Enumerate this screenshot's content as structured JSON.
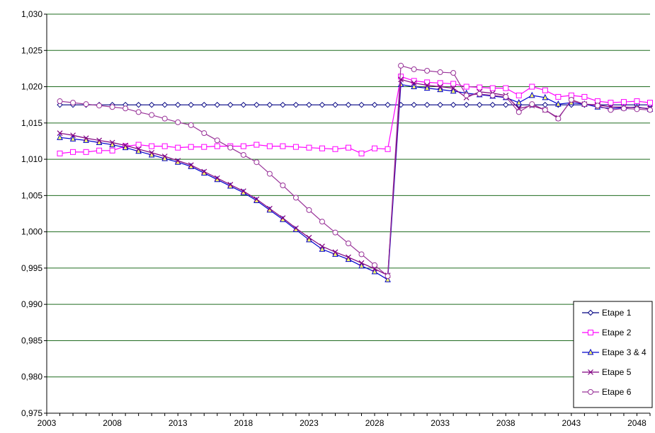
{
  "chart_data": {
    "type": "line",
    "title": "",
    "xlabel": "",
    "ylabel": "",
    "xlim": [
      2003,
      2049
    ],
    "ylim": [
      0.975,
      1.03
    ],
    "x_ticks": [
      2003,
      2008,
      2013,
      2018,
      2023,
      2028,
      2033,
      2038,
      2043,
      2048
    ],
    "y_ticks": [
      0.975,
      0.98,
      0.985,
      0.99,
      0.995,
      1.0,
      1.005,
      1.01,
      1.015,
      1.02,
      1.025,
      1.03
    ],
    "x_tick_labels": [
      "2003",
      "2008",
      "2013",
      "2018",
      "2023",
      "2028",
      "2033",
      "2038",
      "2043",
      "2048"
    ],
    "y_tick_labels": [
      "0,975",
      "0,980",
      "0,985",
      "0,990",
      "0,995",
      "1,000",
      "1,005",
      "1,010",
      "1,015",
      "1,020",
      "1,025",
      "1,030"
    ],
    "grid": "horizontal",
    "legend_position": "bottom-right",
    "x": [
      2004,
      2005,
      2006,
      2007,
      2008,
      2009,
      2010,
      2011,
      2012,
      2013,
      2014,
      2015,
      2016,
      2017,
      2018,
      2019,
      2020,
      2021,
      2022,
      2023,
      2024,
      2025,
      2026,
      2027,
      2028,
      2029,
      2030,
      2031,
      2032,
      2033,
      2034,
      2035,
      2036,
      2037,
      2038,
      2039,
      2040,
      2041,
      2042,
      2043,
      2044,
      2045,
      2046,
      2047,
      2048,
      2049
    ],
    "series": [
      {
        "name": "Etape 1",
        "color": "#000080",
        "marker": "diamond",
        "values": [
          1.0175,
          1.0175,
          1.0175,
          1.0175,
          1.0175,
          1.0175,
          1.0175,
          1.0175,
          1.0175,
          1.0175,
          1.0175,
          1.0175,
          1.0175,
          1.0175,
          1.0175,
          1.0175,
          1.0175,
          1.0175,
          1.0175,
          1.0175,
          1.0175,
          1.0175,
          1.0175,
          1.0175,
          1.0175,
          1.0175,
          1.0175,
          1.0175,
          1.0175,
          1.0175,
          1.0175,
          1.0175,
          1.0175,
          1.0175,
          1.0175,
          1.0175,
          1.0175,
          1.0175,
          1.0175,
          1.0175,
          1.0175,
          1.0175,
          1.0175,
          1.0175,
          1.0175,
          1.0175
        ]
      },
      {
        "name": "Etape 2",
        "color": "#FF00FF",
        "marker": "square",
        "values": [
          1.0108,
          1.011,
          1.011,
          1.0112,
          1.0112,
          1.0118,
          1.012,
          1.0118,
          1.0118,
          1.0116,
          1.0117,
          1.0117,
          1.0118,
          1.0118,
          1.0118,
          1.012,
          1.0118,
          1.0118,
          1.0117,
          1.0116,
          1.0115,
          1.0114,
          1.0116,
          1.0108,
          1.0115,
          1.0114,
          1.0214,
          1.0208,
          1.0206,
          1.0205,
          1.0204,
          1.02,
          1.0199,
          1.0198,
          1.0198,
          1.0188,
          1.02,
          1.0195,
          1.0186,
          1.0188,
          1.0186,
          1.018,
          1.0178,
          1.0179,
          1.018,
          1.0178
        ]
      },
      {
        "name": "Etape 3 & 4",
        "color": "#0000CC",
        "marker": "triangle",
        "values": [
          1.013,
          1.0128,
          1.0126,
          1.0123,
          1.012,
          1.0116,
          1.0111,
          1.0106,
          1.0101,
          1.0096,
          1.009,
          1.0081,
          1.0072,
          1.0063,
          1.0054,
          1.0043,
          1.003,
          1.0017,
          1.0003,
          0.9989,
          0.9976,
          0.9969,
          0.9962,
          0.9953,
          0.9945,
          0.9934,
          1.0203,
          1.02,
          1.0198,
          1.0196,
          1.0194,
          1.0191,
          1.0189,
          1.0187,
          1.0185,
          1.0178,
          1.0188,
          1.0185,
          1.0176,
          1.0178,
          1.0176,
          1.0172,
          1.017,
          1.0171,
          1.0172,
          1.0169
        ]
      },
      {
        "name": "Etape 5",
        "color": "#800080",
        "marker": "x",
        "values": [
          1.0136,
          1.0133,
          1.0129,
          1.0126,
          1.0123,
          1.0119,
          1.0114,
          1.0109,
          1.0104,
          1.0098,
          1.0092,
          1.0083,
          1.0074,
          1.0065,
          1.0056,
          1.0045,
          1.0032,
          1.0019,
          1.0005,
          0.9992,
          0.998,
          0.9972,
          0.9965,
          0.9957,
          0.9949,
          0.994,
          1.021,
          1.0205,
          1.0202,
          1.02,
          1.0198,
          1.0185,
          1.0193,
          1.0191,
          1.0188,
          1.017,
          1.0174,
          1.0168,
          1.0157,
          1.0181,
          1.0176,
          1.0175,
          1.0172,
          1.0172,
          1.0171,
          1.017
        ]
      },
      {
        "name": "Etape 6",
        "color": "#993399",
        "marker": "circle",
        "values": [
          1.018,
          1.0178,
          1.0176,
          1.0174,
          1.0172,
          1.017,
          1.0165,
          1.0161,
          1.0156,
          1.0151,
          1.0147,
          1.0136,
          1.0126,
          1.0116,
          1.0106,
          1.0096,
          1.008,
          1.0064,
          1.0047,
          1.003,
          1.0014,
          0.9999,
          0.9984,
          0.9969,
          0.9954,
          0.9939,
          1.0229,
          1.0224,
          1.0222,
          1.022,
          1.0219,
          1.0188,
          1.019,
          1.0188,
          1.0186,
          1.0165,
          1.0176,
          1.0168,
          1.0156,
          1.0182,
          1.0176,
          1.0174,
          1.0168,
          1.017,
          1.0169,
          1.0168
        ]
      }
    ]
  }
}
